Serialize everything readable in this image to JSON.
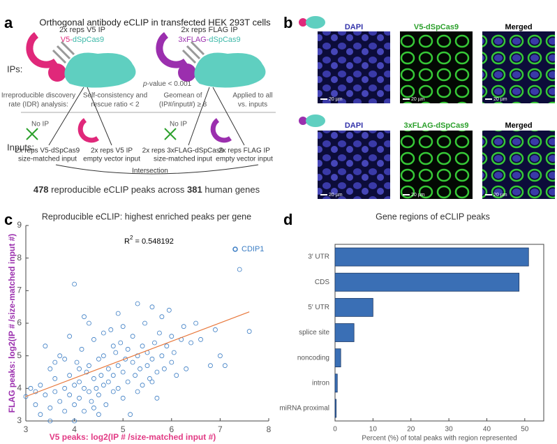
{
  "panel_labels": [
    "a",
    "b",
    "c",
    "d"
  ],
  "panel_a": {
    "title": "Orthogonal antibody eCLIP in transfected HEK 293T cells",
    "ips_label": "IPs:",
    "inputs_label": "Inputs:",
    "v5_ip": {
      "line1": "2x reps V5 IP",
      "tag": "V5-",
      "protein": "dSpCas9"
    },
    "flag_ip": {
      "line1": "2x reps FLAG IP",
      "tag": "3xFLAG-",
      "protein": "dSpCas9"
    },
    "pvalue": {
      "p": "p",
      "rest": "-value < 0.001"
    },
    "criteria": [
      [
        "Irreproducible discovery",
        "rate (IDR) analysis:"
      ],
      [
        "Self-consistency and",
        "rescue ratio < 2"
      ],
      [
        "Geomean of",
        "(IP#/input#) ≥ 8"
      ],
      [
        "Applied to all",
        "vs. inputs"
      ]
    ],
    "no_ip": "No IP",
    "inputs": [
      [
        "2x reps V5-dSpCas9",
        "size-matched input"
      ],
      [
        "2x reps V5 IP",
        "empty vector input"
      ],
      [
        "2x reps 3xFLAG-dSpCas9",
        "size-matched input"
      ],
      [
        "2x reps FLAG IP",
        "empty vector input"
      ]
    ],
    "intersection": "Intersection",
    "summary": {
      "peaks": 478,
      "mid": " reproducible eCLIP peaks across ",
      "genes": 381,
      "end": " human genes"
    }
  },
  "panel_b": {
    "rows": [
      [
        "DAPI",
        "V5-dSpCas9",
        "Merged"
      ],
      [
        "DAPI",
        "3xFLAG-dSpCas9",
        "Merged"
      ]
    ],
    "scale_bar": "20 µm"
  },
  "chart_data": [
    {
      "type": "scatter",
      "title": "Reproducible eCLIP: highest enriched peaks per gene",
      "x_label": "V5 peaks: log2(IP # /size-matched input #)",
      "y_label": "FLAG peaks: log2(IP # /size-matched input #)",
      "annotation": {
        "base": "R",
        "sup": "2",
        "rest": " = 0.548192"
      },
      "xlim": [
        3,
        8
      ],
      "xticks": [
        3,
        4,
        5,
        6,
        7,
        8
      ],
      "ylim": [
        3,
        9
      ],
      "yticks": [
        3,
        4,
        5,
        6,
        7,
        8,
        9
      ],
      "legend": "upper right",
      "fit_line": {
        "x": [
          3,
          7.6
        ],
        "y": [
          3.75,
          6.35
        ],
        "color": "#e8773a"
      },
      "series": [
        {
          "name": "CDIP1",
          "color": "#3b7dc4",
          "x": [
            3.0,
            3.1,
            3.2,
            3.3,
            3.3,
            3.4,
            3.5,
            3.5,
            3.6,
            3.6,
            3.7,
            3.7,
            3.8,
            3.8,
            3.9,
            3.9,
            4.0,
            4.0,
            4.0,
            4.05,
            4.1,
            4.1,
            4.15,
            4.2,
            4.2,
            4.25,
            4.3,
            4.3,
            4.35,
            4.4,
            4.4,
            4.45,
            4.5,
            4.5,
            4.55,
            4.6,
            4.6,
            4.65,
            4.7,
            4.7,
            4.75,
            4.8,
            4.8,
            4.85,
            4.9,
            4.9,
            4.95,
            5.0,
            5.0,
            5.05,
            5.1,
            5.1,
            5.15,
            5.2,
            5.2,
            5.25,
            5.3,
            5.3,
            5.35,
            5.4,
            5.4,
            5.45,
            5.5,
            5.5,
            5.55,
            5.6,
            5.6,
            5.65,
            5.7,
            5.7,
            5.75,
            5.8,
            5.8,
            5.85,
            5.9,
            5.95,
            6.0,
            6.0,
            6.05,
            6.1,
            6.2,
            6.25,
            6.3,
            6.4,
            6.6,
            6.8,
            6.9,
            7.0,
            7.1,
            7.4,
            7.6,
            3.4,
            3.6,
            3.9,
            4.3,
            4.6,
            4.9,
            5.3,
            3.5,
            4.0,
            4.5,
            4.2,
            3.2,
            5.0,
            4.8,
            4.1,
            3.8,
            4.4,
            5.6,
            6.5
          ],
          "values": [
            3.75,
            4.0,
            3.5,
            4.1,
            3.2,
            3.8,
            4.6,
            3.4,
            3.9,
            4.3,
            3.6,
            5.0,
            4.0,
            3.3,
            4.4,
            3.8,
            7.2,
            4.1,
            3.5,
            4.8,
            4.2,
            3.7,
            5.2,
            4.0,
            3.3,
            4.5,
            3.9,
            4.7,
            3.6,
            4.3,
            5.5,
            4.0,
            4.9,
            3.8,
            4.4,
            4.1,
            5.0,
            3.5,
            4.6,
            4.2,
            5.8,
            4.4,
            3.9,
            5.1,
            4.7,
            4.0,
            5.4,
            4.5,
            3.7,
            4.9,
            5.2,
            4.2,
            3.2,
            4.8,
            5.6,
            4.4,
            5.0,
            3.9,
            4.6,
            5.3,
            4.1,
            6.0,
            4.7,
            5.1,
            4.3,
            6.5,
            4.9,
            5.4,
            4.5,
            3.7,
            5.7,
            5.0,
            6.2,
            4.6,
            5.3,
            6.4,
            4.8,
            5.6,
            5.1,
            4.4,
            5.5,
            5.9,
            4.6,
            5.4,
            5.5,
            4.7,
            5.8,
            5.0,
            4.7,
            7.65,
            5.75,
            5.3,
            4.8,
            5.6,
            6.0,
            5.7,
            6.3,
            6.6,
            3.0,
            3.0,
            3.2,
            6.2,
            3.9,
            5.9,
            5.3,
            4.6,
            4.9,
            3.4,
            4.2,
            6.0
          ]
        }
      ]
    },
    {
      "type": "bar",
      "horizontal": true,
      "title": "Gene regions of eCLIP peaks",
      "x_label": "Percent (%) of total peaks with region represented",
      "categories": [
        "3′ UTR",
        "CDS",
        "5′ UTR",
        "splice site",
        "noncoding",
        "intron",
        "miRNA proximal"
      ],
      "values": [
        51,
        48.5,
        10,
        5,
        1.5,
        0.6,
        0.3
      ],
      "color": "#3a6fb5",
      "xlim": [
        0,
        55
      ],
      "xticks": [
        0,
        10,
        20,
        30,
        40,
        50
      ]
    }
  ]
}
